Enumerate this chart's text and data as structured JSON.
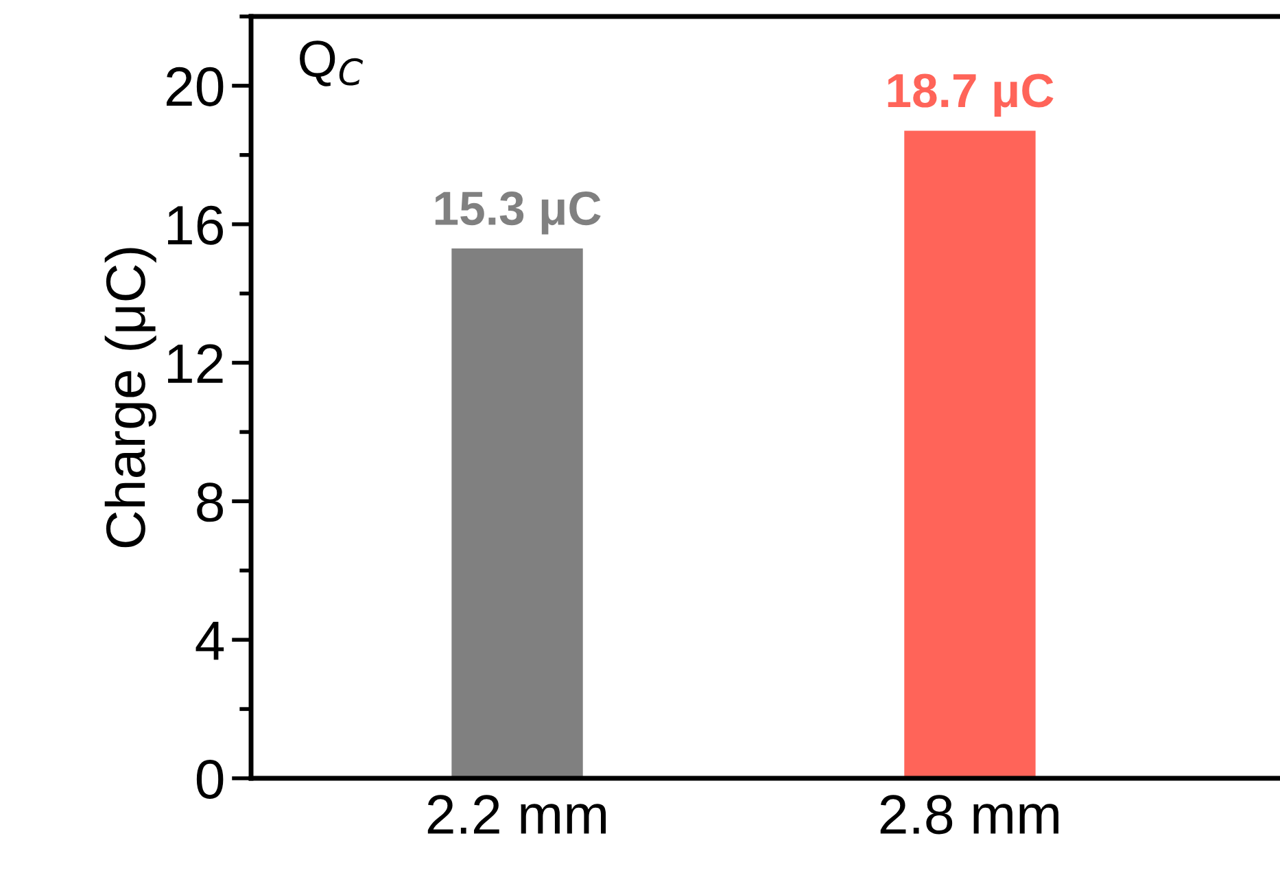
{
  "chart_data": {
    "type": "bar",
    "ylabel": "Charge (μC)",
    "categories": [
      "2.2 mm",
      "2.8 mm"
    ],
    "values": [
      15.3,
      18.7
    ],
    "colors": [
      "#808080",
      "#ff6459"
    ],
    "value_labels": [
      "15.3 μC",
      "18.7 μC"
    ],
    "annotations": [
      "Q$_{C}$"
    ],
    "ylim": [
      0,
      22
    ],
    "yticks": [
      0,
      4,
      8,
      12,
      16,
      20
    ],
    "grid": false,
    "legend": false
  }
}
